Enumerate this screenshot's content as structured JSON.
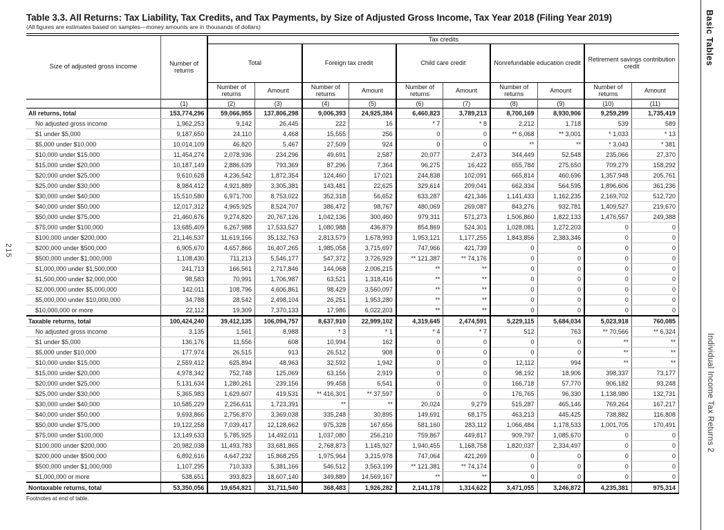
{
  "page": {
    "title": "Table 3.3.  All Returns: Tax Liability, Tax Credits, and Tax Payments, by Size of Adjusted Gross Income, Tax Year 2018 (Filing Year 2019)",
    "subtitle": "(All figures are estimates based on samples—money amounts are in thousands of dollars)",
    "footnote": "Footnotes at end of table."
  },
  "margins": {
    "left_page_number": "215",
    "right_top": "Basic Tables",
    "right_bottom": "Individual Income Tax Returns 2"
  },
  "table": {
    "stub_header": "Size of adjusted gross income",
    "col1_header": "Number of returns",
    "tax_credits_header": "Tax credits",
    "groups": [
      "Total",
      "Foreign tax credit",
      "Child care credit",
      "Nonrefundable education credit",
      "Retirement savings contribution credit"
    ],
    "sub_headers": {
      "returns": "Number of returns",
      "amount": "Amount"
    },
    "column_numbers": [
      "(1)",
      "(2)",
      "(3)",
      "(4)",
      "(5)",
      "(6)",
      "(7)",
      "(8)",
      "(9)",
      "(10)",
      "(11)"
    ],
    "rows": [
      {
        "label": "All returns, total",
        "bold": true,
        "indent": false,
        "rule": false,
        "values": [
          "153,774,296",
          "59,066,955",
          "137,806,298",
          "9,006,393",
          "24,925,384",
          "6,460,823",
          "3,789,213",
          "8,700,169",
          "8,930,906",
          "9,259,299",
          "1,735,419"
        ]
      },
      {
        "label": "No adjusted gross income",
        "bold": false,
        "indent": true,
        "rule": false,
        "values": [
          "1,962,253",
          "9,142",
          "26,445",
          "222",
          "16",
          "* 7",
          "* 8",
          "2,212",
          "1,718",
          "539",
          "589"
        ]
      },
      {
        "label": "$1 under $5,000",
        "bold": false,
        "indent": true,
        "rule": false,
        "values": [
          "9,187,650",
          "24,110",
          "4,468",
          "15,555",
          "256",
          "0",
          "0",
          "** 6,068",
          "** 3,001",
          "* 1,033",
          "* 13"
        ]
      },
      {
        "label": "$5,000 under $10,000",
        "bold": false,
        "indent": true,
        "rule": false,
        "values": [
          "10,014,109",
          "46,820",
          "5,467",
          "27,509",
          "924",
          "0",
          "0",
          "**",
          "**",
          "* 3,043",
          "* 381"
        ]
      },
      {
        "label": "$10,000 under $15,000",
        "bold": false,
        "indent": true,
        "rule": false,
        "values": [
          "11,454,274",
          "2,078,936",
          "234,296",
          "49,691",
          "2,587",
          "20,077",
          "2,473",
          "344,449",
          "52,548",
          "235,066",
          "27,370"
        ]
      },
      {
        "label": "$15,000 under $20,000",
        "bold": false,
        "indent": true,
        "rule": false,
        "values": [
          "10,187,149",
          "2,886,639",
          "793,369",
          "87,296",
          "7,364",
          "96,275",
          "16,422",
          "655,784",
          "275,650",
          "709,279",
          "158,292"
        ]
      },
      {
        "label": "$20,000 under $25,000",
        "bold": false,
        "indent": true,
        "rule": false,
        "values": [
          "9,610,628",
          "4,236,542",
          "1,872,354",
          "124,460",
          "17,021",
          "244,838",
          "102,091",
          "665,814",
          "460,696",
          "1,357,948",
          "205,761"
        ]
      },
      {
        "label": "$25,000 under $30,000",
        "bold": false,
        "indent": true,
        "rule": false,
        "values": [
          "8,984,412",
          "4,921,889",
          "3,305,381",
          "143,481",
          "22,625",
          "329,614",
          "209,041",
          "662,334",
          "564,595",
          "1,896,606",
          "361,236"
        ]
      },
      {
        "label": "$30,000 under $40,000",
        "bold": false,
        "indent": true,
        "rule": false,
        "values": [
          "15,510,580",
          "6,971,700",
          "8,753,022",
          "352,318",
          "56,652",
          "633,287",
          "421,346",
          "1,141,433",
          "1,162,235",
          "2,169,702",
          "512,720"
        ]
      },
      {
        "label": "$40,000 under $50,000",
        "bold": false,
        "indent": true,
        "rule": false,
        "values": [
          "12,017,312",
          "4,965,925",
          "8,524,707",
          "386,472",
          "98,767",
          "480,069",
          "269,087",
          "843,276",
          "932,781",
          "1,409,527",
          "219,670"
        ]
      },
      {
        "label": "$50,000 under $75,000",
        "bold": false,
        "indent": true,
        "rule": false,
        "values": [
          "21,460,676",
          "9,274,820",
          "20,767,126",
          "1,042,136",
          "300,460",
          "979,311",
          "571,273",
          "1,506,860",
          "1,822,133",
          "1,476,557",
          "249,388"
        ]
      },
      {
        "label": "$75,000 under $100,000",
        "bold": false,
        "indent": true,
        "rule": false,
        "values": [
          "13,685,409",
          "6,267,988",
          "17,533,527",
          "1,080,988",
          "436,879",
          "854,869",
          "524,301",
          "1,028,081",
          "1,272,203",
          "0",
          "0"
        ]
      },
      {
        "label": "$100,000 under $200,000",
        "bold": false,
        "indent": true,
        "rule": false,
        "values": [
          "21,146,537",
          "11,619,166",
          "35,132,763",
          "2,813,579",
          "1,678,993",
          "1,953,121",
          "1,177,255",
          "1,843,856",
          "2,383,346",
          "0",
          "0"
        ]
      },
      {
        "label": "$200,000 under $500,000",
        "bold": false,
        "indent": true,
        "rule": false,
        "values": [
          "6,905,670",
          "4,657,866",
          "16,407,265",
          "1,985,058",
          "3,715,697",
          "747,966",
          "421,739",
          "0",
          "0",
          "0",
          "0"
        ]
      },
      {
        "label": "$500,000 under $1,000,000",
        "bold": false,
        "indent": true,
        "rule": false,
        "values": [
          "1,108,430",
          "711,213",
          "5,546,177",
          "547,372",
          "3,726,929",
          "** 121,387",
          "** 74,176",
          "0",
          "0",
          "0",
          "0"
        ]
      },
      {
        "label": "$1,000,000 under $1,500,000",
        "bold": false,
        "indent": true,
        "rule": false,
        "values": [
          "241,713",
          "166,561",
          "2,717,846",
          "144,068",
          "2,006,215",
          "**",
          "**",
          "0",
          "0",
          "0",
          "0"
        ]
      },
      {
        "label": "$1,500,000 under $2,000,000",
        "bold": false,
        "indent": true,
        "rule": false,
        "values": [
          "98,583",
          "70,991",
          "1,706,987",
          "63,521",
          "1,318,416",
          "**",
          "**",
          "0",
          "0",
          "0",
          "0"
        ]
      },
      {
        "label": "$2,000,000 under $5,000,000",
        "bold": false,
        "indent": true,
        "rule": false,
        "values": [
          "142,011",
          "108,796",
          "4,606,861",
          "98,429",
          "3,560,097",
          "**",
          "**",
          "0",
          "0",
          "0",
          "0"
        ]
      },
      {
        "label": "$5,000,000 under $10,000,000",
        "bold": false,
        "indent": true,
        "rule": false,
        "values": [
          "34,788",
          "28,542",
          "2,498,104",
          "26,251",
          "1,953,280",
          "**",
          "**",
          "0",
          "0",
          "0",
          "0"
        ]
      },
      {
        "label": "$10,000,000 or more",
        "bold": false,
        "indent": true,
        "rule": false,
        "values": [
          "22,112",
          "19,309",
          "7,370,133",
          "17,986",
          "6,022,203",
          "**",
          "**",
          "0",
          "0",
          "0",
          "0"
        ]
      },
      {
        "label": "Taxable returns, total",
        "bold": true,
        "indent": false,
        "rule": true,
        "values": [
          "100,424,240",
          "39,412,135",
          "106,094,757",
          "8,637,910",
          "22,999,102",
          "4,319,645",
          "2,474,591",
          "5,229,115",
          "5,684,034",
          "5,023,918",
          "760,085"
        ]
      },
      {
        "label": "No adjusted gross income",
        "bold": false,
        "indent": true,
        "rule": false,
        "values": [
          "3,135",
          "1,561",
          "8,988",
          "* 3",
          "* 1",
          "* 4",
          "* 7",
          "512",
          "763",
          "** 70,566",
          "** 6,324"
        ]
      },
      {
        "label": "$1 under $5,000",
        "bold": false,
        "indent": true,
        "rule": false,
        "values": [
          "136,176",
          "11,556",
          "608",
          "10,994",
          "162",
          "0",
          "0",
          "0",
          "0",
          "**",
          "**"
        ]
      },
      {
        "label": "$5,000 under $10,000",
        "bold": false,
        "indent": true,
        "rule": false,
        "values": [
          "177,974",
          "26,515",
          "913",
          "26,512",
          "908",
          "0",
          "0",
          "0",
          "0",
          "**",
          "**"
        ]
      },
      {
        "label": "$10,000 under $15,000",
        "bold": false,
        "indent": true,
        "rule": false,
        "values": [
          "2,559,412",
          "625,894",
          "48,963",
          "32,592",
          "1,942",
          "0",
          "0",
          "12,112",
          "994",
          "**",
          "**"
        ]
      },
      {
        "label": "$15,000 under $20,000",
        "bold": false,
        "indent": true,
        "rule": false,
        "values": [
          "4,978,342",
          "752,748",
          "125,069",
          "63,156",
          "2,919",
          "0",
          "0",
          "98,192",
          "18,906",
          "398,337",
          "73,177"
        ]
      },
      {
        "label": "$20,000 under $25,000",
        "bold": false,
        "indent": true,
        "rule": false,
        "values": [
          "5,131,634",
          "1,280,261",
          "239,156",
          "99,458",
          "6,541",
          "0",
          "0",
          "166,718",
          "57,770",
          "906,182",
          "93,248"
        ]
      },
      {
        "label": "$25,000 under $30,000",
        "bold": false,
        "indent": true,
        "rule": false,
        "values": [
          "5,365,983",
          "1,629,607",
          "419,531",
          "** 416,301",
          "** 37,597",
          "0",
          "0",
          "176,765",
          "96,330",
          "1,138,980",
          "132,731"
        ]
      },
      {
        "label": "$30,000 under $40,000",
        "bold": false,
        "indent": true,
        "rule": false,
        "values": [
          "10,585,229",
          "2,256,611",
          "1,723,391",
          "**",
          "**",
          "20,024",
          "9,279",
          "515,287",
          "465,146",
          "769,264",
          "167,217"
        ]
      },
      {
        "label": "$40,000 under $50,000",
        "bold": false,
        "indent": true,
        "rule": false,
        "values": [
          "9,693,866",
          "2,756,870",
          "3,369,038",
          "335,248",
          "30,895",
          "149,691",
          "68,175",
          "463,213",
          "445,425",
          "738,882",
          "116,808"
        ]
      },
      {
        "label": "$50,000 under $75,000",
        "bold": false,
        "indent": true,
        "rule": false,
        "values": [
          "19,122,258",
          "7,039,417",
          "12,128,662",
          "975,328",
          "167,656",
          "581,160",
          "283,112",
          "1,066,484",
          "1,178,533",
          "1,001,705",
          "170,491"
        ]
      },
      {
        "label": "$75,000 under $100,000",
        "bold": false,
        "indent": true,
        "rule": false,
        "values": [
          "13,149,633",
          "5,785,925",
          "14,492,011",
          "1,037,080",
          "256,210",
          "759,867",
          "449,817",
          "909,797",
          "1,085,670",
          "0",
          "0"
        ]
      },
      {
        "label": "$100,000 under $200,000",
        "bold": false,
        "indent": true,
        "rule": false,
        "values": [
          "20,982,038",
          "11,493,783",
          "33,681,865",
          "2,768,873",
          "1,145,927",
          "1,940,455",
          "1,168,758",
          "1,820,037",
          "2,334,497",
          "0",
          "0"
        ]
      },
      {
        "label": "$200,000 under $500,000",
        "bold": false,
        "indent": true,
        "rule": false,
        "values": [
          "6,892,616",
          "4,647,232",
          "15,868,255",
          "1,975,964",
          "3,215,978",
          "747,064",
          "421,269",
          "0",
          "0",
          "0",
          "0"
        ]
      },
      {
        "label": "$500,000 under $1,000,000",
        "bold": false,
        "indent": true,
        "rule": false,
        "values": [
          "1,107,295",
          "710,333",
          "5,381,166",
          "546,512",
          "3,563,199",
          "** 121,381",
          "** 74,174",
          "0",
          "0",
          "0",
          "0"
        ]
      },
      {
        "label": "$1,000,000 or more",
        "bold": false,
        "indent": true,
        "rule": false,
        "values": [
          "538,651",
          "393,823",
          "18,607,140",
          "349,889",
          "14,569,167",
          "**",
          "**",
          "0",
          "0",
          "0",
          "0"
        ]
      },
      {
        "label": "Nontaxable returns, total",
        "bold": true,
        "indent": false,
        "rule": true,
        "values": [
          "53,350,056",
          "19,654,821",
          "31,711,540",
          "368,483",
          "1,926,282",
          "2,141,178",
          "1,314,622",
          "3,471,055",
          "3,246,872",
          "4,235,381",
          "975,314"
        ]
      }
    ]
  }
}
